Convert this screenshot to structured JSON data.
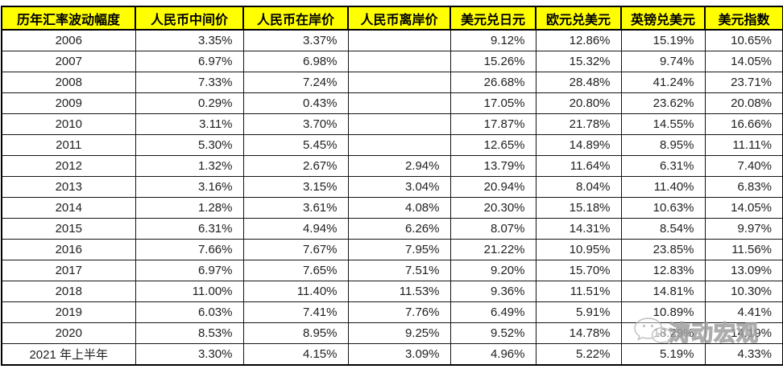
{
  "table": {
    "columns": [
      {
        "key": "year",
        "label": "历年汇率波动幅度"
      },
      {
        "key": "mid",
        "label": "人民币中间价"
      },
      {
        "key": "onshore",
        "label": "人民币在岸价"
      },
      {
        "key": "offshore",
        "label": "人民币离岸价"
      },
      {
        "key": "usdjpy",
        "label": "美元兑日元"
      },
      {
        "key": "eurusd",
        "label": "欧元兑美元"
      },
      {
        "key": "gbpusd",
        "label": "英镑兑美元"
      },
      {
        "key": "dxy",
        "label": "美元指数"
      }
    ],
    "rows": [
      [
        "2006",
        "3.35%",
        "3.37%",
        "",
        "9.12%",
        "12.86%",
        "15.19%",
        "10.65%"
      ],
      [
        "2007",
        "6.97%",
        "6.98%",
        "",
        "15.26%",
        "15.32%",
        "9.74%",
        "14.05%"
      ],
      [
        "2008",
        "7.33%",
        "7.24%",
        "",
        "26.68%",
        "28.48%",
        "41.24%",
        "23.71%"
      ],
      [
        "2009",
        "0.29%",
        "0.43%",
        "",
        "17.05%",
        "20.80%",
        "23.62%",
        "20.08%"
      ],
      [
        "2010",
        "3.11%",
        "3.70%",
        "",
        "17.87%",
        "21.78%",
        "14.55%",
        "16.66%"
      ],
      [
        "2011",
        "5.30%",
        "5.45%",
        "",
        "12.65%",
        "14.89%",
        "8.95%",
        "11.11%"
      ],
      [
        "2012",
        "1.32%",
        "2.67%",
        "2.94%",
        "13.79%",
        "11.64%",
        "6.31%",
        "7.40%"
      ],
      [
        "2013",
        "3.16%",
        "3.15%",
        "3.04%",
        "20.94%",
        "8.04%",
        "11.40%",
        "6.83%"
      ],
      [
        "2014",
        "1.28%",
        "3.61%",
        "4.08%",
        "20.30%",
        "15.18%",
        "10.63%",
        "14.05%"
      ],
      [
        "2015",
        "6.31%",
        "4.94%",
        "6.26%",
        "8.07%",
        "14.31%",
        "8.54%",
        "9.97%"
      ],
      [
        "2016",
        "7.66%",
        "7.67%",
        "7.95%",
        "21.22%",
        "10.95%",
        "23.85%",
        "11.56%"
      ],
      [
        "2017",
        "6.97%",
        "7.65%",
        "7.51%",
        "9.20%",
        "15.70%",
        "12.83%",
        "13.09%"
      ],
      [
        "2018",
        "11.00%",
        "11.40%",
        "11.53%",
        "9.36%",
        "11.51%",
        "14.81%",
        "10.30%"
      ],
      [
        "2019",
        "6.03%",
        "7.41%",
        "7.76%",
        "6.49%",
        "5.91%",
        "10.89%",
        "4.41%"
      ],
      [
        "2020",
        "8.53%",
        "8.95%",
        "9.25%",
        "9.52%",
        "14.78%",
        "18.29%",
        "14.19%"
      ],
      [
        "2021 年上半年",
        "3.30%",
        "4.15%",
        "3.09%",
        "4.96%",
        "5.22%",
        "5.19%",
        "4.33%"
      ]
    ]
  },
  "watermark": {
    "text": "涛动宏观",
    "icon": "wechat-icon"
  },
  "colors": {
    "header_bg": "#ffff00",
    "header_text": "#000000",
    "border": "#000000",
    "body_text": "#1f1f1f",
    "watermark_gray": "#9f9f9f"
  },
  "chart_data": {
    "type": "table",
    "title": "历年汇率波动幅度",
    "columns": [
      "历年汇率波动幅度",
      "人民币中间价",
      "人民币在岸价",
      "人民币离岸价",
      "美元兑日元",
      "欧元兑美元",
      "英镑兑美元",
      "美元指数"
    ],
    "categories": [
      "2006",
      "2007",
      "2008",
      "2009",
      "2010",
      "2011",
      "2012",
      "2013",
      "2014",
      "2015",
      "2016",
      "2017",
      "2018",
      "2019",
      "2020",
      "2021 年上半年"
    ],
    "series": [
      {
        "name": "人民币中间价",
        "values": [
          "3.35%",
          "6.97%",
          "7.33%",
          "0.29%",
          "3.11%",
          "5.30%",
          "1.32%",
          "3.16%",
          "1.28%",
          "6.31%",
          "7.66%",
          "6.97%",
          "11.00%",
          "6.03%",
          "8.53%",
          "3.30%"
        ]
      },
      {
        "name": "人民币在岸价",
        "values": [
          "3.37%",
          "6.98%",
          "7.24%",
          "0.43%",
          "3.70%",
          "5.45%",
          "2.67%",
          "3.15%",
          "3.61%",
          "4.94%",
          "7.67%",
          "7.65%",
          "11.40%",
          "7.41%",
          "8.95%",
          "4.15%"
        ]
      },
      {
        "name": "人民币离岸价",
        "values": [
          "",
          "",
          "",
          "",
          "",
          "",
          "2.94%",
          "3.04%",
          "4.08%",
          "6.26%",
          "7.95%",
          "7.51%",
          "11.53%",
          "7.76%",
          "9.25%",
          "3.09%"
        ]
      },
      {
        "name": "美元兑日元",
        "values": [
          "9.12%",
          "15.26%",
          "26.68%",
          "17.05%",
          "17.87%",
          "12.65%",
          "13.79%",
          "20.94%",
          "20.30%",
          "8.07%",
          "21.22%",
          "9.20%",
          "9.36%",
          "6.49%",
          "9.52%",
          "4.96%"
        ]
      },
      {
        "name": "欧元兑美元",
        "values": [
          "12.86%",
          "15.32%",
          "28.48%",
          "20.80%",
          "21.78%",
          "14.89%",
          "11.64%",
          "8.04%",
          "15.18%",
          "14.31%",
          "10.95%",
          "15.70%",
          "11.51%",
          "5.91%",
          "14.78%",
          "5.22%"
        ]
      },
      {
        "name": "英镑兑美元",
        "values": [
          "15.19%",
          "9.74%",
          "41.24%",
          "23.62%",
          "14.55%",
          "8.95%",
          "6.31%",
          "11.40%",
          "10.63%",
          "8.54%",
          "23.85%",
          "12.83%",
          "14.81%",
          "10.89%",
          "18.29%",
          "5.19%"
        ]
      },
      {
        "name": "美元指数",
        "values": [
          "10.65%",
          "14.05%",
          "23.71%",
          "20.08%",
          "16.66%",
          "11.11%",
          "7.40%",
          "6.83%",
          "14.05%",
          "9.97%",
          "11.56%",
          "13.09%",
          "10.30%",
          "4.41%",
          "14.19%",
          "4.33%"
        ]
      }
    ],
    "notes": "2020 英镑兑美元 and 美元指数 cells are partially obscured by a WeChat watermark in the source image"
  }
}
